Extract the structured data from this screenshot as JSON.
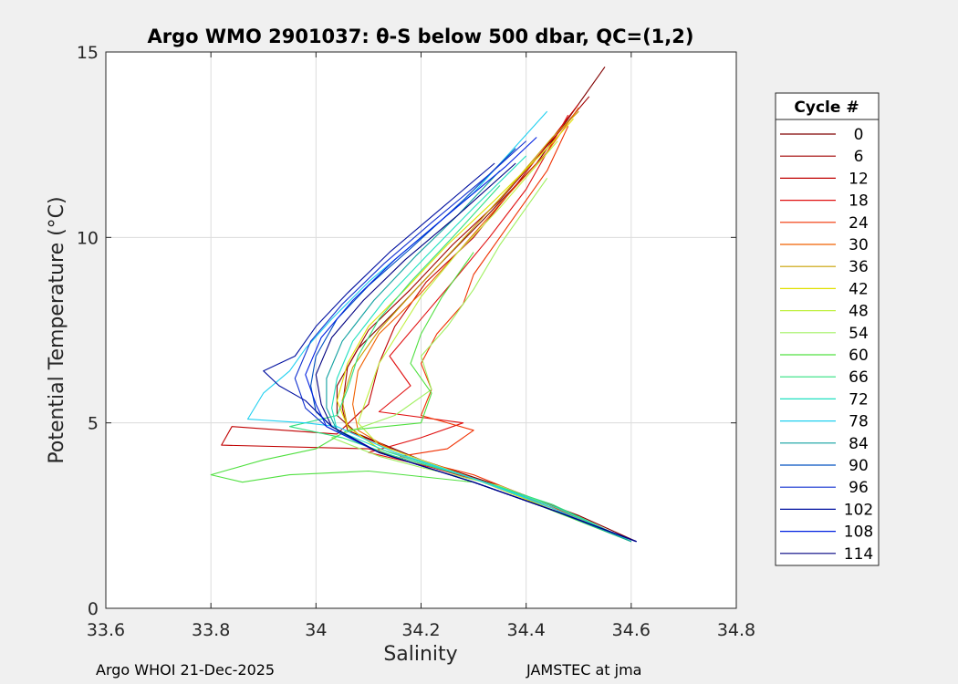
{
  "chart_data": {
    "type": "line",
    "title": "Argo WMO 2901037: θ-S below 500 dbar,  QC=(1,2)",
    "xlabel": "Salinity",
    "ylabel": "Potential Temperature (°C)",
    "xlim": [
      33.6,
      34.8
    ],
    "ylim": [
      0,
      15
    ],
    "xticks": [
      "33.6",
      "33.8",
      "34",
      "34.2",
      "34.4",
      "34.6",
      "34.8"
    ],
    "yticks": [
      "0",
      "5",
      "10",
      "15"
    ],
    "grid": true,
    "legend": {
      "title": "Cycle #",
      "placement": "right-outside",
      "entries": [
        "0",
        "6",
        "12",
        "18",
        "24",
        "30",
        "36",
        "42",
        "48",
        "54",
        "60",
        "66",
        "72",
        "78",
        "84",
        "90",
        "96",
        "102",
        "108",
        "114"
      ],
      "colors": [
        "#800000",
        "#a00000",
        "#c00000",
        "#e01010",
        "#f03000",
        "#f06000",
        "#c8a000",
        "#e0e000",
        "#c0f040",
        "#a0f060",
        "#50e040",
        "#30e080",
        "#20e0c0",
        "#20d0f0",
        "#10a0a0",
        "#0050c0",
        "#1030d0",
        "#0010a0",
        "#0020e0",
        "#000080"
      ]
    },
    "series_profiles": [
      {
        "name": "0",
        "color": "#800000",
        "points": [
          [
            34.61,
            1.8
          ],
          [
            34.5,
            2.5
          ],
          [
            34.35,
            3.3
          ],
          [
            34.2,
            4.0
          ],
          [
            34.08,
            4.7
          ],
          [
            34.04,
            5.2
          ],
          [
            34.04,
            6.0
          ],
          [
            34.08,
            7.0
          ],
          [
            34.15,
            8.0
          ],
          [
            34.23,
            9.2
          ],
          [
            34.32,
            10.5
          ],
          [
            34.42,
            12.0
          ],
          [
            34.55,
            14.6
          ]
        ]
      },
      {
        "name": "6",
        "color": "#a00000",
        "points": [
          [
            34.6,
            1.8
          ],
          [
            34.48,
            2.6
          ],
          [
            34.32,
            3.4
          ],
          [
            34.16,
            4.2
          ],
          [
            34.06,
            4.8
          ],
          [
            34.05,
            5.4
          ],
          [
            34.06,
            6.5
          ],
          [
            34.1,
            7.5
          ],
          [
            34.18,
            8.6
          ],
          [
            34.26,
            9.8
          ],
          [
            34.35,
            11.0
          ],
          [
            34.46,
            12.8
          ],
          [
            34.52,
            13.8
          ]
        ]
      },
      {
        "name": "12",
        "color": "#c00000",
        "points": [
          [
            34.6,
            1.8
          ],
          [
            34.45,
            2.7
          ],
          [
            34.3,
            3.5
          ],
          [
            34.1,
            4.3
          ],
          [
            33.82,
            4.4
          ],
          [
            33.84,
            4.9
          ],
          [
            34.04,
            4.7
          ],
          [
            34.1,
            5.5
          ],
          [
            34.12,
            6.6
          ],
          [
            34.15,
            7.6
          ],
          [
            34.21,
            8.8
          ],
          [
            34.3,
            10.0
          ],
          [
            34.38,
            11.4
          ],
          [
            34.5,
            13.6
          ]
        ]
      },
      {
        "name": "18",
        "color": "#e01010",
        "points": [
          [
            34.6,
            1.8
          ],
          [
            34.46,
            2.7
          ],
          [
            34.32,
            3.4
          ],
          [
            34.22,
            3.8
          ],
          [
            34.1,
            4.2
          ],
          [
            34.2,
            4.6
          ],
          [
            34.28,
            5.0
          ],
          [
            34.12,
            5.3
          ],
          [
            34.18,
            6.0
          ],
          [
            34.14,
            6.8
          ],
          [
            34.2,
            7.8
          ],
          [
            34.26,
            8.8
          ],
          [
            34.33,
            10.0
          ],
          [
            34.4,
            11.3
          ],
          [
            34.48,
            13.3
          ]
        ]
      },
      {
        "name": "24",
        "color": "#f03000",
        "points": [
          [
            34.6,
            1.8
          ],
          [
            34.44,
            2.8
          ],
          [
            34.3,
            3.6
          ],
          [
            34.16,
            4.1
          ],
          [
            34.25,
            4.3
          ],
          [
            34.3,
            4.8
          ],
          [
            34.2,
            5.2
          ],
          [
            34.22,
            5.9
          ],
          [
            34.2,
            6.6
          ],
          [
            34.23,
            7.4
          ],
          [
            34.28,
            8.2
          ],
          [
            34.3,
            9.0
          ],
          [
            34.36,
            10.2
          ],
          [
            34.44,
            11.8
          ],
          [
            34.48,
            13.0
          ]
        ]
      },
      {
        "name": "30",
        "color": "#f06000",
        "points": [
          [
            34.6,
            1.8
          ],
          [
            34.45,
            2.7
          ],
          [
            34.3,
            3.5
          ],
          [
            34.14,
            4.3
          ],
          [
            34.08,
            4.8
          ],
          [
            34.07,
            5.5
          ],
          [
            34.08,
            6.4
          ],
          [
            34.12,
            7.4
          ],
          [
            34.2,
            8.5
          ],
          [
            34.27,
            9.6
          ],
          [
            34.35,
            10.9
          ],
          [
            34.44,
            12.3
          ],
          [
            34.5,
            13.5
          ]
        ]
      },
      {
        "name": "36",
        "color": "#c8a000",
        "points": [
          [
            34.6,
            1.8
          ],
          [
            34.46,
            2.6
          ],
          [
            34.3,
            3.5
          ],
          [
            34.12,
            4.3
          ],
          [
            34.06,
            4.9
          ],
          [
            34.05,
            5.6
          ],
          [
            34.07,
            6.5
          ],
          [
            34.12,
            7.5
          ],
          [
            34.19,
            8.6
          ],
          [
            34.27,
            9.8
          ],
          [
            34.36,
            11.2
          ],
          [
            34.45,
            12.7
          ],
          [
            34.5,
            13.4
          ]
        ]
      },
      {
        "name": "42",
        "color": "#e0e000",
        "points": [
          [
            34.6,
            1.8
          ],
          [
            34.46,
            2.6
          ],
          [
            34.3,
            3.5
          ],
          [
            34.12,
            4.3
          ],
          [
            34.06,
            4.9
          ],
          [
            34.04,
            5.6
          ],
          [
            34.06,
            6.6
          ],
          [
            34.1,
            7.6
          ],
          [
            34.17,
            8.6
          ],
          [
            34.25,
            9.8
          ],
          [
            34.34,
            11.0
          ],
          [
            34.44,
            12.4
          ],
          [
            34.49,
            13.2
          ]
        ]
      },
      {
        "name": "48",
        "color": "#c0f040",
        "points": [
          [
            34.6,
            1.8
          ],
          [
            34.45,
            2.7
          ],
          [
            34.28,
            3.6
          ],
          [
            34.12,
            4.4
          ],
          [
            34.08,
            5.0
          ],
          [
            34.1,
            5.8
          ],
          [
            34.12,
            6.6
          ],
          [
            34.16,
            7.5
          ],
          [
            34.2,
            8.4
          ],
          [
            34.27,
            9.6
          ],
          [
            34.35,
            10.8
          ],
          [
            34.46,
            12.6
          ]
        ]
      },
      {
        "name": "54",
        "color": "#a0f060",
        "points": [
          [
            34.6,
            1.8
          ],
          [
            34.46,
            2.7
          ],
          [
            34.35,
            3.3
          ],
          [
            34.2,
            3.8
          ],
          [
            34.12,
            4.1
          ],
          [
            34.03,
            4.6
          ],
          [
            34.15,
            5.2
          ],
          [
            34.22,
            5.9
          ],
          [
            34.2,
            6.8
          ],
          [
            34.25,
            7.6
          ],
          [
            34.3,
            8.6
          ],
          [
            34.35,
            9.8
          ],
          [
            34.44,
            11.6
          ]
        ]
      },
      {
        "name": "60",
        "color": "#50e040",
        "points": [
          [
            34.6,
            1.8
          ],
          [
            34.42,
            2.8
          ],
          [
            34.3,
            3.4
          ],
          [
            34.1,
            3.7
          ],
          [
            33.95,
            3.6
          ],
          [
            33.86,
            3.4
          ],
          [
            33.8,
            3.6
          ],
          [
            33.9,
            4.0
          ],
          [
            34.0,
            4.3
          ],
          [
            34.06,
            4.8
          ],
          [
            34.2,
            5.0
          ],
          [
            34.22,
            5.8
          ],
          [
            34.18,
            6.6
          ],
          [
            34.2,
            7.4
          ],
          [
            34.24,
            8.4
          ],
          [
            34.3,
            9.6
          ]
        ]
      },
      {
        "name": "66",
        "color": "#30e080",
        "points": [
          [
            34.6,
            1.8
          ],
          [
            34.45,
            2.8
          ],
          [
            34.3,
            3.5
          ],
          [
            34.15,
            4.1
          ],
          [
            34.05,
            4.6
          ],
          [
            33.95,
            4.9
          ],
          [
            34.04,
            5.2
          ],
          [
            34.06,
            5.9
          ],
          [
            34.08,
            6.8
          ],
          [
            34.12,
            7.8
          ],
          [
            34.18,
            8.8
          ],
          [
            34.26,
            10.0
          ],
          [
            34.35,
            11.4
          ]
        ]
      },
      {
        "name": "72",
        "color": "#20e0c0",
        "points": [
          [
            34.6,
            1.8
          ],
          [
            34.46,
            2.7
          ],
          [
            34.3,
            3.5
          ],
          [
            34.14,
            4.2
          ],
          [
            34.04,
            4.8
          ],
          [
            34.03,
            5.4
          ],
          [
            34.04,
            6.2
          ],
          [
            34.07,
            7.2
          ],
          [
            34.13,
            8.3
          ],
          [
            34.21,
            9.5
          ],
          [
            34.3,
            10.8
          ],
          [
            34.4,
            12.2
          ]
        ]
      },
      {
        "name": "78",
        "color": "#20d0f0",
        "points": [
          [
            34.6,
            1.8
          ],
          [
            34.45,
            2.7
          ],
          [
            34.3,
            3.5
          ],
          [
            34.15,
            4.2
          ],
          [
            34.04,
            4.9
          ],
          [
            33.98,
            5.0
          ],
          [
            33.87,
            5.1
          ],
          [
            33.9,
            5.8
          ],
          [
            33.95,
            6.4
          ],
          [
            33.98,
            7.0
          ],
          [
            34.03,
            7.8
          ],
          [
            34.1,
            8.8
          ],
          [
            34.2,
            10.0
          ],
          [
            34.3,
            11.2
          ],
          [
            34.44,
            13.4
          ]
        ]
      },
      {
        "name": "84",
        "color": "#10a0a0",
        "points": [
          [
            34.6,
            1.8
          ],
          [
            34.46,
            2.6
          ],
          [
            34.3,
            3.4
          ],
          [
            34.12,
            4.2
          ],
          [
            34.04,
            4.8
          ],
          [
            34.02,
            5.4
          ],
          [
            34.02,
            6.2
          ],
          [
            34.05,
            7.2
          ],
          [
            34.11,
            8.3
          ],
          [
            34.19,
            9.5
          ],
          [
            34.27,
            10.6
          ],
          [
            34.35,
            11.8
          ]
        ]
      },
      {
        "name": "90",
        "color": "#0050c0",
        "points": [
          [
            34.61,
            1.8
          ],
          [
            34.46,
            2.6
          ],
          [
            34.3,
            3.4
          ],
          [
            34.12,
            4.2
          ],
          [
            34.03,
            4.9
          ],
          [
            34.0,
            5.3
          ],
          [
            33.99,
            6.0
          ],
          [
            34.0,
            6.8
          ],
          [
            34.04,
            7.8
          ],
          [
            34.1,
            8.7
          ],
          [
            34.18,
            9.7
          ],
          [
            34.28,
            11.0
          ],
          [
            34.38,
            12.4
          ]
        ]
      },
      {
        "name": "96",
        "color": "#1030d0",
        "points": [
          [
            34.61,
            1.8
          ],
          [
            34.46,
            2.6
          ],
          [
            34.3,
            3.4
          ],
          [
            34.12,
            4.2
          ],
          [
            34.02,
            4.9
          ],
          [
            33.98,
            5.4
          ],
          [
            33.96,
            6.2
          ],
          [
            33.99,
            7.2
          ],
          [
            34.05,
            8.2
          ],
          [
            34.13,
            9.3
          ],
          [
            34.22,
            10.4
          ],
          [
            34.33,
            11.7
          ],
          [
            34.4,
            12.6
          ]
        ]
      },
      {
        "name": "102",
        "color": "#0010a0",
        "points": [
          [
            34.61,
            1.8
          ],
          [
            34.46,
            2.6
          ],
          [
            34.3,
            3.4
          ],
          [
            34.12,
            4.2
          ],
          [
            34.03,
            4.9
          ],
          [
            33.98,
            5.6
          ],
          [
            33.93,
            6.0
          ],
          [
            33.9,
            6.4
          ],
          [
            33.96,
            6.8
          ],
          [
            34.0,
            7.6
          ],
          [
            34.06,
            8.5
          ],
          [
            34.14,
            9.6
          ],
          [
            34.24,
            10.8
          ],
          [
            34.34,
            12.0
          ]
        ]
      },
      {
        "name": "108",
        "color": "#0020e0",
        "points": [
          [
            34.61,
            1.8
          ],
          [
            34.46,
            2.6
          ],
          [
            34.3,
            3.4
          ],
          [
            34.12,
            4.2
          ],
          [
            34.02,
            4.9
          ],
          [
            34.0,
            5.5
          ],
          [
            33.98,
            6.3
          ],
          [
            34.01,
            7.3
          ],
          [
            34.07,
            8.3
          ],
          [
            34.15,
            9.4
          ],
          [
            34.25,
            10.6
          ],
          [
            34.36,
            11.9
          ],
          [
            34.42,
            12.7
          ]
        ]
      },
      {
        "name": "114",
        "color": "#000080",
        "points": [
          [
            34.61,
            1.8
          ],
          [
            34.46,
            2.6
          ],
          [
            34.3,
            3.4
          ],
          [
            34.12,
            4.2
          ],
          [
            34.03,
            4.9
          ],
          [
            34.01,
            5.5
          ],
          [
            34.0,
            6.3
          ],
          [
            34.03,
            7.3
          ],
          [
            34.09,
            8.3
          ],
          [
            34.17,
            9.4
          ],
          [
            34.27,
            10.6
          ],
          [
            34.38,
            12.0
          ]
        ]
      }
    ]
  },
  "footer": {
    "left": "Argo WHOI 21-Dec-2025",
    "right": "JAMSTEC at jma"
  }
}
